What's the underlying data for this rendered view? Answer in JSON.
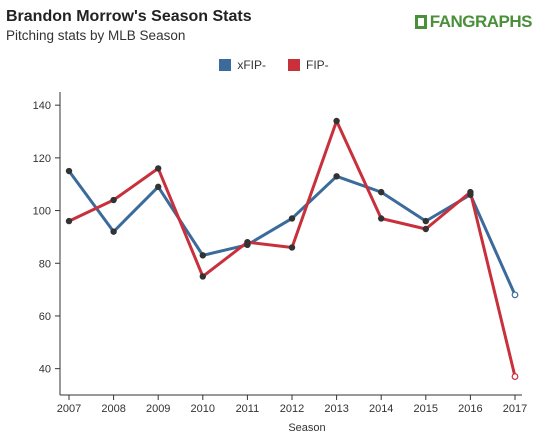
{
  "header": {
    "title": "Brandon Morrow's Season Stats",
    "subtitle": "Pitching stats by MLB Season",
    "logo_text_fan": "FAN",
    "logo_text_graphs": "GRAPHS"
  },
  "chart_data": {
    "type": "line",
    "categories": [
      "2007",
      "2008",
      "2009",
      "2010",
      "2011",
      "2012",
      "2013",
      "2014",
      "2015",
      "2016",
      "2017"
    ],
    "series": [
      {
        "name": "xFIP-",
        "color": "#3a6b9a",
        "values": [
          115,
          92,
          109,
          83,
          87,
          97,
          113,
          107,
          96,
          106,
          68
        ]
      },
      {
        "name": "FIP-",
        "color": "#c8303c",
        "values": [
          96,
          104,
          116,
          75,
          88,
          86,
          134,
          97,
          93,
          107,
          37
        ]
      }
    ],
    "xlabel": "Season",
    "ylabel": "",
    "ylim": [
      30,
      145
    ],
    "yticks": [
      40,
      60,
      80,
      100,
      120,
      140
    ],
    "grid": false,
    "legend": "top-center"
  }
}
